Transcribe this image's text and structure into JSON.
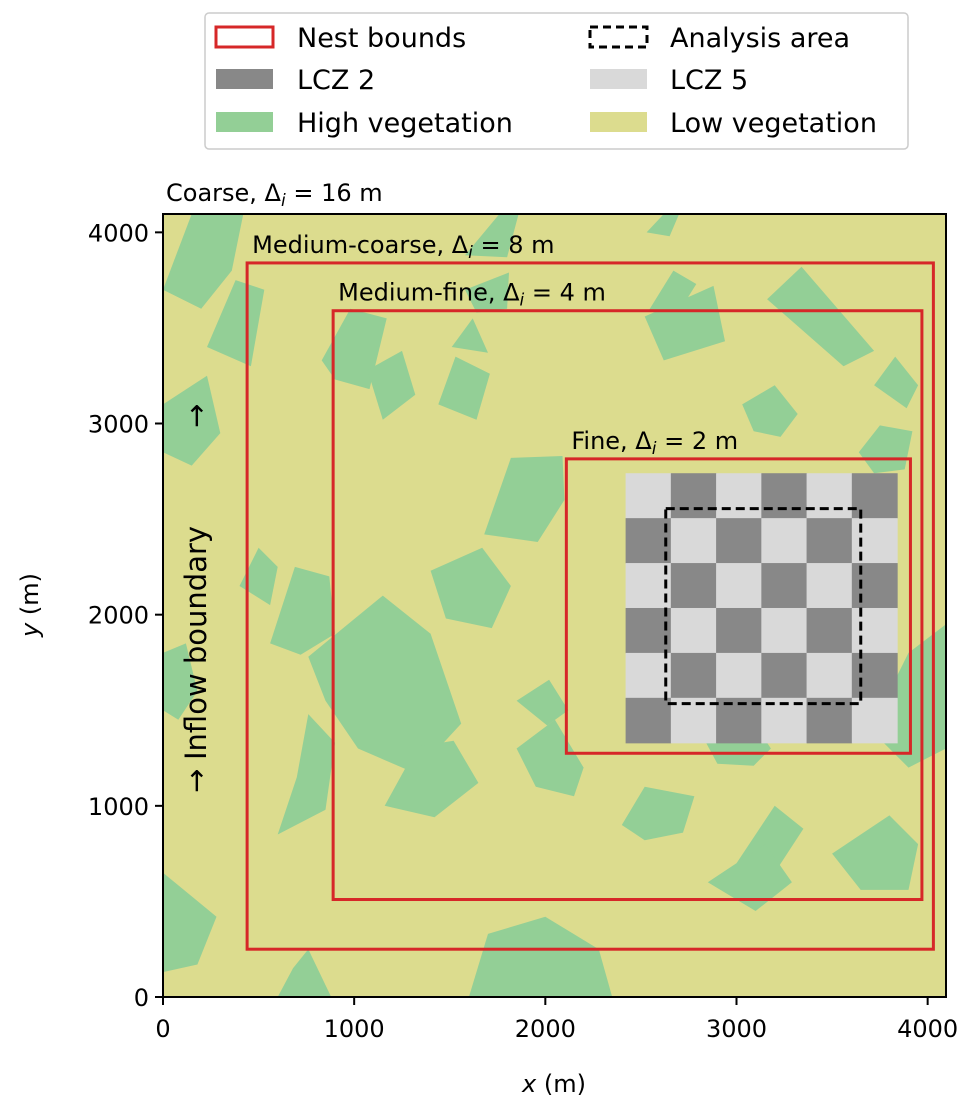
{
  "legend": {
    "items": [
      {
        "label": "Nest bounds",
        "kind": "outline",
        "color": "#d62728"
      },
      {
        "label": "Analysis area",
        "kind": "dashed",
        "color": "#000000"
      },
      {
        "label": "LCZ 2",
        "kind": "fill",
        "color": "#888888"
      },
      {
        "label": "LCZ 5",
        "kind": "fill",
        "color": "#d9d9d9"
      },
      {
        "label": "High vegetation",
        "kind": "fill",
        "color": "#93cf96"
      },
      {
        "label": "Low vegetation",
        "kind": "fill",
        "color": "#dcdc8e"
      }
    ]
  },
  "plot": {
    "title_prefix": "Coarse, Δ",
    "title_sub": "i",
    "title_suffix": " = 16 m",
    "inflow_label": "Inflow boundary",
    "arrow_glyph": "→"
  },
  "chart_data": {
    "type": "map",
    "xlabel_var": "x",
    "xlabel_unit": " (m)",
    "ylabel_var": "y",
    "ylabel_unit": " (m)",
    "xlim": [
      0,
      4096
    ],
    "ylim": [
      0,
      4096
    ],
    "xticks": [
      0,
      1000,
      2000,
      3000,
      4000
    ],
    "yticks": [
      0,
      1000,
      2000,
      3000,
      4000
    ],
    "colors": {
      "background": "#dcdc8e",
      "high_vegetation": "#93cf96",
      "lcz2": "#888888",
      "lcz5": "#d9d9d9",
      "nest": "#d62728",
      "analysis": "#000000"
    },
    "nests": [
      {
        "prefix": "Medium-coarse, Δ",
        "sub": "i",
        "suffix": " = 8 m",
        "x0": 440,
        "y0": 250,
        "x1": 4030,
        "y1": 3840
      },
      {
        "prefix": "Medium-fine, Δ",
        "sub": "i",
        "suffix": " = 4 m",
        "x0": 890,
        "y0": 510,
        "x1": 3970,
        "y1": 3590
      },
      {
        "prefix": "Fine, Δ",
        "sub": "i",
        "suffix": " = 2 m",
        "x0": 2110,
        "y0": 1275,
        "x1": 3910,
        "y1": 2815
      }
    ],
    "analysis_area": {
      "x0": 2630,
      "y0": 1535,
      "x1": 3650,
      "y1": 2555
    },
    "checkerboard": {
      "x0": 2420,
      "y0": 1330,
      "x1": 3840,
      "y1": 2740,
      "cols": 6,
      "rows": 6,
      "first_dark": false
    },
    "vegetation_patches": [
      [
        [
          0,
          3700
        ],
        [
          150,
          4096
        ],
        [
          420,
          4096
        ],
        [
          360,
          3800
        ],
        [
          200,
          3600
        ]
      ],
      [
        [
          230,
          3400
        ],
        [
          380,
          3750
        ],
        [
          530,
          3700
        ],
        [
          460,
          3300
        ]
      ],
      [
        [
          0,
          2850
        ],
        [
          0,
          3100
        ],
        [
          230,
          3250
        ],
        [
          300,
          2950
        ],
        [
          150,
          2780
        ]
      ],
      [
        [
          830,
          3330
        ],
        [
          980,
          3600
        ],
        [
          1170,
          3550
        ],
        [
          1080,
          3180
        ],
        [
          900,
          3230
        ]
      ],
      [
        [
          1070,
          3280
        ],
        [
          1250,
          3380
        ],
        [
          1320,
          3150
        ],
        [
          1150,
          3020
        ]
      ],
      [
        [
          1440,
          3100
        ],
        [
          1530,
          3350
        ],
        [
          1710,
          3260
        ],
        [
          1640,
          3020
        ]
      ],
      [
        [
          1510,
          3400
        ],
        [
          1620,
          3550
        ],
        [
          1700,
          3370
        ]
      ],
      [
        [
          1580,
          3700
        ],
        [
          1810,
          3790
        ],
        [
          1800,
          3600
        ],
        [
          1640,
          3580
        ]
      ],
      [
        [
          1580,
          3880
        ],
        [
          1760,
          4096
        ],
        [
          1860,
          4096
        ],
        [
          1800,
          3870
        ]
      ],
      [
        [
          2520,
          3560
        ],
        [
          2880,
          3720
        ],
        [
          2940,
          3430
        ],
        [
          2620,
          3330
        ]
      ],
      [
        [
          2540,
          3590
        ],
        [
          2670,
          3800
        ],
        [
          2790,
          3730
        ],
        [
          2690,
          3570
        ]
      ],
      [
        [
          3030,
          3100
        ],
        [
          3200,
          3200
        ],
        [
          3320,
          3050
        ],
        [
          3230,
          2930
        ],
        [
          3090,
          2960
        ]
      ],
      [
        [
          3160,
          3650
        ],
        [
          3340,
          3820
        ],
        [
          3720,
          3380
        ],
        [
          3560,
          3300
        ]
      ],
      [
        [
          2530,
          4000
        ],
        [
          2620,
          4096
        ],
        [
          2700,
          4096
        ],
        [
          2650,
          3980
        ]
      ],
      [
        [
          3640,
          2850
        ],
        [
          3750,
          2990
        ],
        [
          3920,
          2960
        ],
        [
          3880,
          2760
        ],
        [
          3720,
          2740
        ]
      ],
      [
        [
          1680,
          2420
        ],
        [
          1960,
          2380
        ],
        [
          2100,
          2600
        ],
        [
          2090,
          2830
        ],
        [
          1820,
          2820
        ]
      ],
      [
        [
          1400,
          2230
        ],
        [
          1670,
          2350
        ],
        [
          1820,
          2150
        ],
        [
          1720,
          1930
        ],
        [
          1480,
          1980
        ]
      ],
      [
        [
          560,
          1850
        ],
        [
          690,
          2250
        ],
        [
          870,
          2200
        ],
        [
          900,
          1900
        ],
        [
          720,
          1790
        ]
      ],
      [
        [
          400,
          2150
        ],
        [
          500,
          2350
        ],
        [
          600,
          2250
        ],
        [
          560,
          2050
        ]
      ],
      [
        [
          760,
          1780
        ],
        [
          1150,
          2100
        ],
        [
          1400,
          1900
        ],
        [
          1560,
          1430
        ],
        [
          1320,
          1170
        ],
        [
          1020,
          1300
        ],
        [
          850,
          1550
        ]
      ],
      [
        [
          1160,
          1000
        ],
        [
          1330,
          1310
        ],
        [
          1520,
          1340
        ],
        [
          1650,
          1120
        ],
        [
          1420,
          940
        ]
      ],
      [
        [
          0,
          1500
        ],
        [
          0,
          1800
        ],
        [
          120,
          1850
        ],
        [
          180,
          1600
        ],
        [
          80,
          1450
        ]
      ],
      [
        [
          0,
          130
        ],
        [
          0,
          650
        ],
        [
          280,
          420
        ],
        [
          180,
          170
        ]
      ],
      [
        [
          600,
          0
        ],
        [
          880,
          0
        ],
        [
          760,
          250
        ],
        [
          680,
          150
        ]
      ],
      [
        [
          1600,
          0
        ],
        [
          2350,
          0
        ],
        [
          2280,
          250
        ],
        [
          2000,
          420
        ],
        [
          1700,
          330
        ]
      ],
      [
        [
          600,
          850
        ],
        [
          700,
          1150
        ],
        [
          760,
          1480
        ],
        [
          900,
          1330
        ],
        [
          850,
          980
        ]
      ],
      [
        [
          1850,
          1300
        ],
        [
          2050,
          1450
        ],
        [
          2200,
          1200
        ],
        [
          2150,
          1050
        ],
        [
          1950,
          1100
        ]
      ],
      [
        [
          1850,
          1550
        ],
        [
          2020,
          1660
        ],
        [
          2120,
          1500
        ],
        [
          2010,
          1420
        ]
      ],
      [
        [
          2830,
          1350
        ],
        [
          3060,
          1480
        ],
        [
          3180,
          1300
        ],
        [
          3090,
          1210
        ],
        [
          2900,
          1220
        ]
      ],
      [
        [
          2400,
          900
        ],
        [
          2520,
          1100
        ],
        [
          2780,
          1050
        ],
        [
          2720,
          860
        ],
        [
          2520,
          820
        ]
      ],
      [
        [
          3000,
          700
        ],
        [
          3200,
          1000
        ],
        [
          3350,
          880
        ],
        [
          3200,
          650
        ]
      ],
      [
        [
          2850,
          600
        ],
        [
          3150,
          800
        ],
        [
          3290,
          600
        ],
        [
          3100,
          450
        ]
      ],
      [
        [
          3500,
          750
        ],
        [
          3800,
          950
        ],
        [
          3950,
          800
        ],
        [
          3900,
          560
        ],
        [
          3650,
          560
        ]
      ],
      [
        [
          3700,
          1400
        ],
        [
          3900,
          1800
        ],
        [
          4096,
          1950
        ],
        [
          4096,
          1300
        ],
        [
          3900,
          1200
        ]
      ],
      [
        [
          3720,
          3200
        ],
        [
          3830,
          3350
        ],
        [
          3950,
          3200
        ],
        [
          3890,
          3080
        ]
      ]
    ]
  }
}
